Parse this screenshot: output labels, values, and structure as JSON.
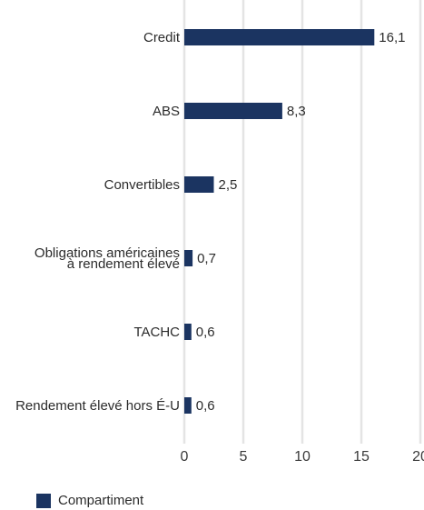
{
  "chart_data": {
    "type": "bar",
    "orientation": "horizontal",
    "categories": [
      [
        "Credit"
      ],
      [
        "ABS"
      ],
      [
        "Convertibles"
      ],
      [
        "Obligations américaines",
        "à rendement élevé"
      ],
      [
        "TACHC"
      ],
      [
        "Rendement élevé hors É-U"
      ]
    ],
    "series": [
      {
        "name": "Compartiment",
        "values": [
          16.1,
          8.3,
          2.5,
          0.7,
          0.6,
          0.6
        ],
        "labels": [
          "16,1",
          "8,3",
          "2,5",
          "0,7",
          "0,6",
          "0,6"
        ],
        "color": "#1b3461"
      }
    ],
    "xlim": [
      0,
      20
    ],
    "xticks": [
      0,
      5,
      10,
      15,
      20
    ],
    "grid": true,
    "legend_position": "bottom-left"
  },
  "legend": {
    "label": "Compartiment",
    "color": "#1b3461"
  }
}
